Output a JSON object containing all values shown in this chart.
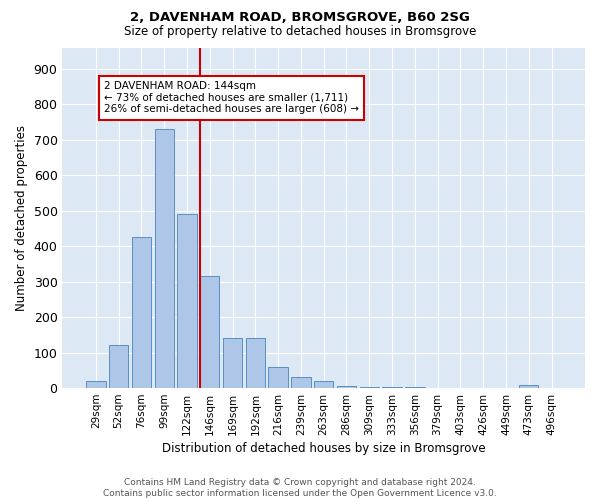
{
  "title_line1": "2, DAVENHAM ROAD, BROMSGROVE, B60 2SG",
  "title_line2": "Size of property relative to detached houses in Bromsgrove",
  "xlabel": "Distribution of detached houses by size in Bromsgrove",
  "ylabel": "Number of detached properties",
  "bar_labels": [
    "29sqm",
    "52sqm",
    "76sqm",
    "99sqm",
    "122sqm",
    "146sqm",
    "169sqm",
    "192sqm",
    "216sqm",
    "239sqm",
    "263sqm",
    "286sqm",
    "309sqm",
    "333sqm",
    "356sqm",
    "379sqm",
    "403sqm",
    "426sqm",
    "449sqm",
    "473sqm",
    "496sqm"
  ],
  "bar_values": [
    20,
    120,
    425,
    730,
    490,
    315,
    140,
    140,
    60,
    30,
    20,
    5,
    3,
    2,
    2,
    1,
    1,
    1,
    1,
    10,
    1
  ],
  "bar_color": "#aec6e8",
  "bar_edge_color": "#5a8fc2",
  "vline_index": 5,
  "vline_color": "#cc0000",
  "annotation_text": "2 DAVENHAM ROAD: 144sqm\n← 73% of detached houses are smaller (1,711)\n26% of semi-detached houses are larger (608) →",
  "annotation_box_color": "#ffffff",
  "annotation_box_edge": "#cc0000",
  "ylim": [
    0,
    960
  ],
  "yticks": [
    0,
    100,
    200,
    300,
    400,
    500,
    600,
    700,
    800,
    900
  ],
  "bg_color": "#dde8f5",
  "grid_color": "#ffffff",
  "footnote": "Contains HM Land Registry data © Crown copyright and database right 2024.\nContains public sector information licensed under the Open Government Licence v3.0."
}
